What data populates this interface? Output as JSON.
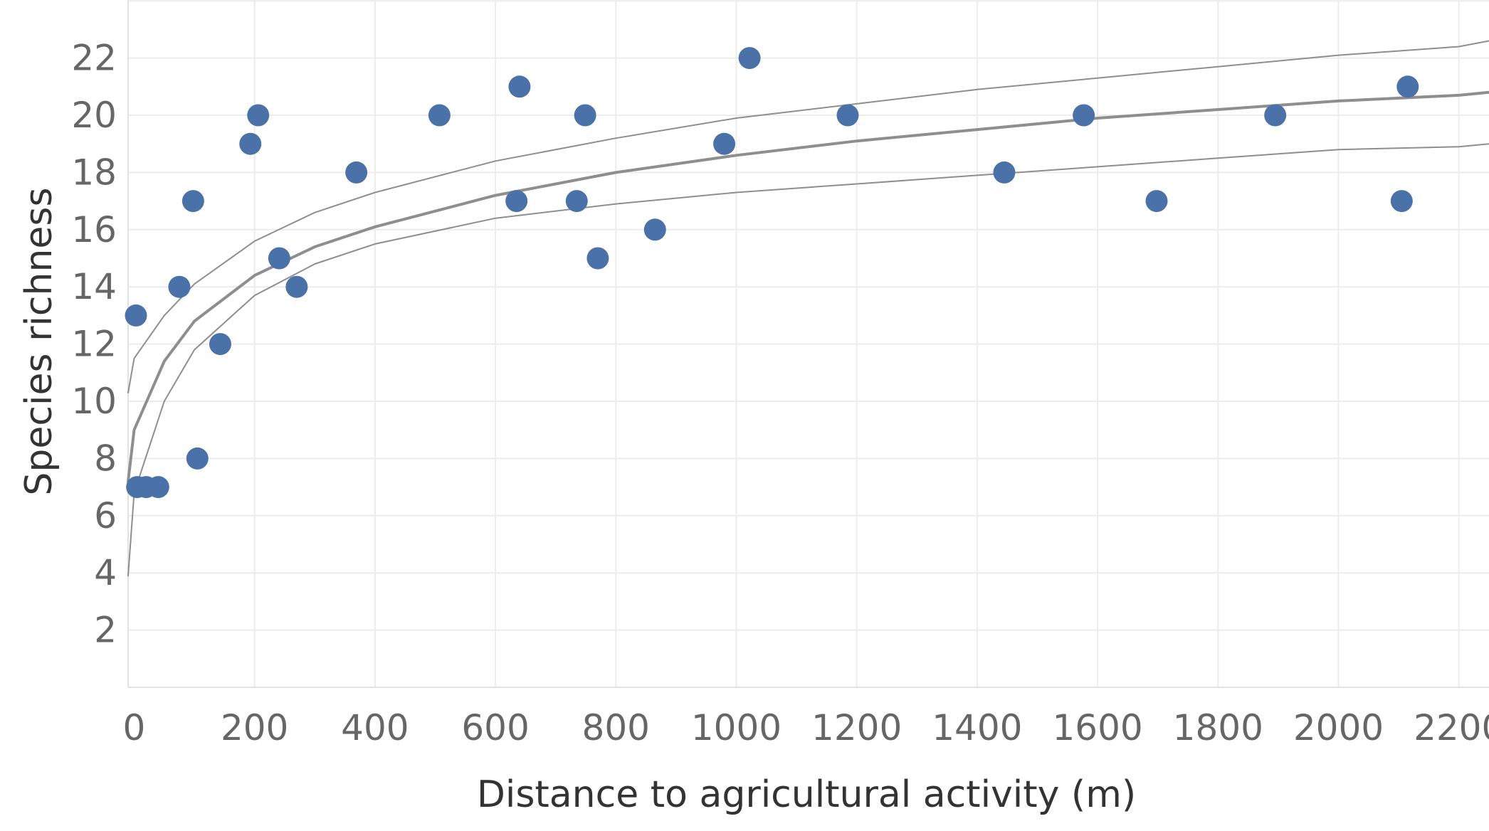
{
  "chart_data": {
    "type": "scatter",
    "xlabel": "Distance to agricultural activity (m)",
    "ylabel": "Species richness",
    "xlim": [
      -10,
      2250
    ],
    "ylim": [
      0,
      24
    ],
    "x_ticks": [
      0,
      200,
      400,
      600,
      800,
      1000,
      1200,
      1400,
      1600,
      1800,
      2000,
      2200
    ],
    "y_ticks": [
      2,
      4,
      6,
      8,
      10,
      12,
      14,
      16,
      18,
      20,
      22
    ],
    "grid": true,
    "points": [
      {
        "x": 3,
        "y": 13
      },
      {
        "x": 5,
        "y": 7
      },
      {
        "x": 20,
        "y": 7
      },
      {
        "x": 40,
        "y": 7
      },
      {
        "x": 75,
        "y": 14
      },
      {
        "x": 98,
        "y": 17
      },
      {
        "x": 105,
        "y": 8
      },
      {
        "x": 143,
        "y": 12
      },
      {
        "x": 193,
        "y": 19
      },
      {
        "x": 206,
        "y": 20
      },
      {
        "x": 241,
        "y": 15
      },
      {
        "x": 270,
        "y": 14
      },
      {
        "x": 369,
        "y": 18
      },
      {
        "x": 507,
        "y": 20
      },
      {
        "x": 635,
        "y": 17
      },
      {
        "x": 640,
        "y": 21
      },
      {
        "x": 735,
        "y": 17
      },
      {
        "x": 749,
        "y": 20
      },
      {
        "x": 770,
        "y": 15
      },
      {
        "x": 865,
        "y": 16
      },
      {
        "x": 980,
        "y": 19
      },
      {
        "x": 1022,
        "y": 22
      },
      {
        "x": 1185,
        "y": 20
      },
      {
        "x": 1445,
        "y": 18
      },
      {
        "x": 1577,
        "y": 20
      },
      {
        "x": 1698,
        "y": 17
      },
      {
        "x": 1895,
        "y": 20
      },
      {
        "x": 2105,
        "y": 17
      },
      {
        "x": 2115,
        "y": 21
      }
    ],
    "fit_lines": [
      {
        "role": "upper-bound",
        "x": [
          -10,
          0,
          50,
          100,
          200,
          300,
          400,
          600,
          800,
          1000,
          1200,
          1400,
          1600,
          1800,
          2000,
          2200,
          2250
        ],
        "y": [
          10.3,
          11.5,
          13.0,
          14.1,
          15.6,
          16.6,
          17.3,
          18.4,
          19.2,
          19.9,
          20.4,
          20.9,
          21.3,
          21.7,
          22.1,
          22.4,
          22.6
        ]
      },
      {
        "role": "trend",
        "x": [
          -10,
          0,
          50,
          100,
          200,
          300,
          400,
          600,
          800,
          1000,
          1200,
          1400,
          1600,
          1800,
          2000,
          2200,
          2250
        ],
        "y": [
          7.2,
          9.0,
          11.4,
          12.8,
          14.4,
          15.4,
          16.1,
          17.2,
          18.0,
          18.6,
          19.1,
          19.5,
          19.9,
          20.2,
          20.5,
          20.7,
          20.8
        ]
      },
      {
        "role": "lower-bound",
        "x": [
          -10,
          0,
          50,
          100,
          200,
          300,
          400,
          600,
          800,
          1000,
          1200,
          1400,
          1600,
          1800,
          2000,
          2200,
          2250
        ],
        "y": [
          3.9,
          6.8,
          10.0,
          11.8,
          13.7,
          14.8,
          15.5,
          16.4,
          16.9,
          17.3,
          17.6,
          17.9,
          18.2,
          18.5,
          18.8,
          18.9,
          19.0
        ]
      }
    ],
    "colors": {
      "point": "#4a72a8",
      "trend": "#8e8e8e",
      "bound": "#8e8e8e",
      "grid": "#ececec",
      "tick_label": "#666666",
      "axis_label": "#333333"
    }
  }
}
